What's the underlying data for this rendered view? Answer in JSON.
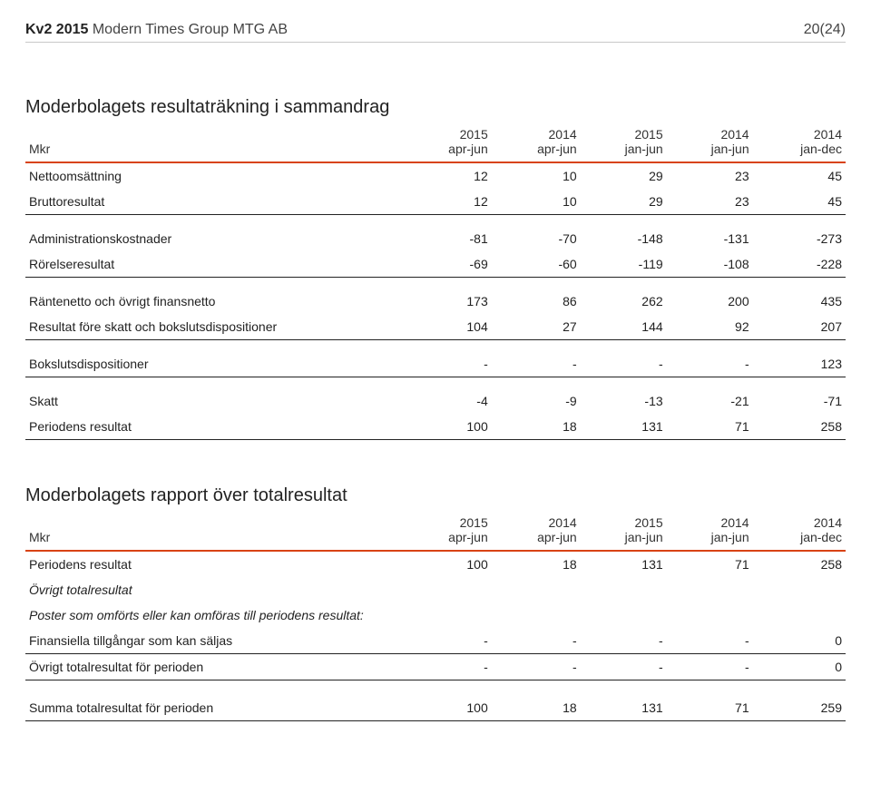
{
  "header": {
    "quarter": "Kv2 2015",
    "company": "Modern Times Group MTG AB",
    "page": "20(24)"
  },
  "table1": {
    "title": "Moderbolagets resultaträkning i sammandrag",
    "unit_label": "Mkr",
    "col_years": [
      "2015",
      "2014",
      "2015",
      "2014",
      "2014"
    ],
    "col_periods": [
      "apr-jun",
      "apr-jun",
      "jan-jun",
      "jan-jun",
      "jan-dec"
    ],
    "rows": [
      {
        "label": "Nettoomsättning",
        "vals": [
          "12",
          "10",
          "29",
          "23",
          "45"
        ]
      },
      {
        "label": "Bruttoresultat",
        "vals": [
          "12",
          "10",
          "29",
          "23",
          "45"
        ],
        "bold_label": false,
        "rule_above": false,
        "section_end": true
      }
    ],
    "rows2": [
      {
        "label": "Administrationskostnader",
        "vals": [
          "-81",
          "-70",
          "-148",
          "-131",
          "-273"
        ]
      },
      {
        "label": "Rörelseresultat",
        "vals": [
          "-69",
          "-60",
          "-119",
          "-108",
          "-228"
        ],
        "section_end": true
      }
    ],
    "rows3": [
      {
        "label": "Räntenetto och övrigt finansnetto",
        "vals": [
          "173",
          "86",
          "262",
          "200",
          "435"
        ]
      },
      {
        "label": "Resultat före skatt och bokslutsdispositioner",
        "vals": [
          "104",
          "27",
          "144",
          "92",
          "207"
        ],
        "section_end": true
      }
    ],
    "rows4": [
      {
        "label": "Bokslutsdispositioner",
        "vals": [
          "-",
          "-",
          "-",
          "-",
          "123"
        ],
        "section_end": true
      }
    ],
    "rows5": [
      {
        "label": "Skatt",
        "vals": [
          "-4",
          "-9",
          "-13",
          "-21",
          "-71"
        ]
      },
      {
        "label": "Periodens resultat",
        "vals": [
          "100",
          "18",
          "131",
          "71",
          "258"
        ],
        "section_end": true
      }
    ]
  },
  "table2": {
    "title": "Moderbolagets rapport över totalresultat",
    "unit_label": "Mkr",
    "col_years": [
      "2015",
      "2014",
      "2015",
      "2014",
      "2014"
    ],
    "col_periods": [
      "apr-jun",
      "apr-jun",
      "jan-jun",
      "jan-jun",
      "jan-dec"
    ],
    "rows": [
      {
        "label": "Periodens resultat",
        "vals": [
          "100",
          "18",
          "131",
          "71",
          "258"
        ]
      },
      {
        "label": "Övrigt totalresultat",
        "vals": [
          "",
          "",
          "",
          "",
          ""
        ],
        "italic": true
      },
      {
        "label": "Poster som omförts eller kan omföras till periodens resultat:",
        "vals": [
          "",
          "",
          "",
          "",
          ""
        ],
        "italic": true
      },
      {
        "label": "Finansiella tillgångar som kan säljas",
        "vals": [
          "-",
          "-",
          "-",
          "-",
          "0"
        ]
      },
      {
        "label": "Övrigt totalresultat för perioden",
        "vals": [
          "-",
          "-",
          "-",
          "-",
          "0"
        ],
        "section_end": true
      }
    ],
    "rows_final": [
      {
        "label": "Summa totalresultat för perioden",
        "vals": [
          "100",
          "18",
          "131",
          "71",
          "259"
        ],
        "section_end": true
      }
    ]
  },
  "style": {
    "accent_color": "#d84315",
    "rule_color": "#222222",
    "font_family": "Arial, Helvetica, sans-serif",
    "body_bg": "#ffffff"
  }
}
